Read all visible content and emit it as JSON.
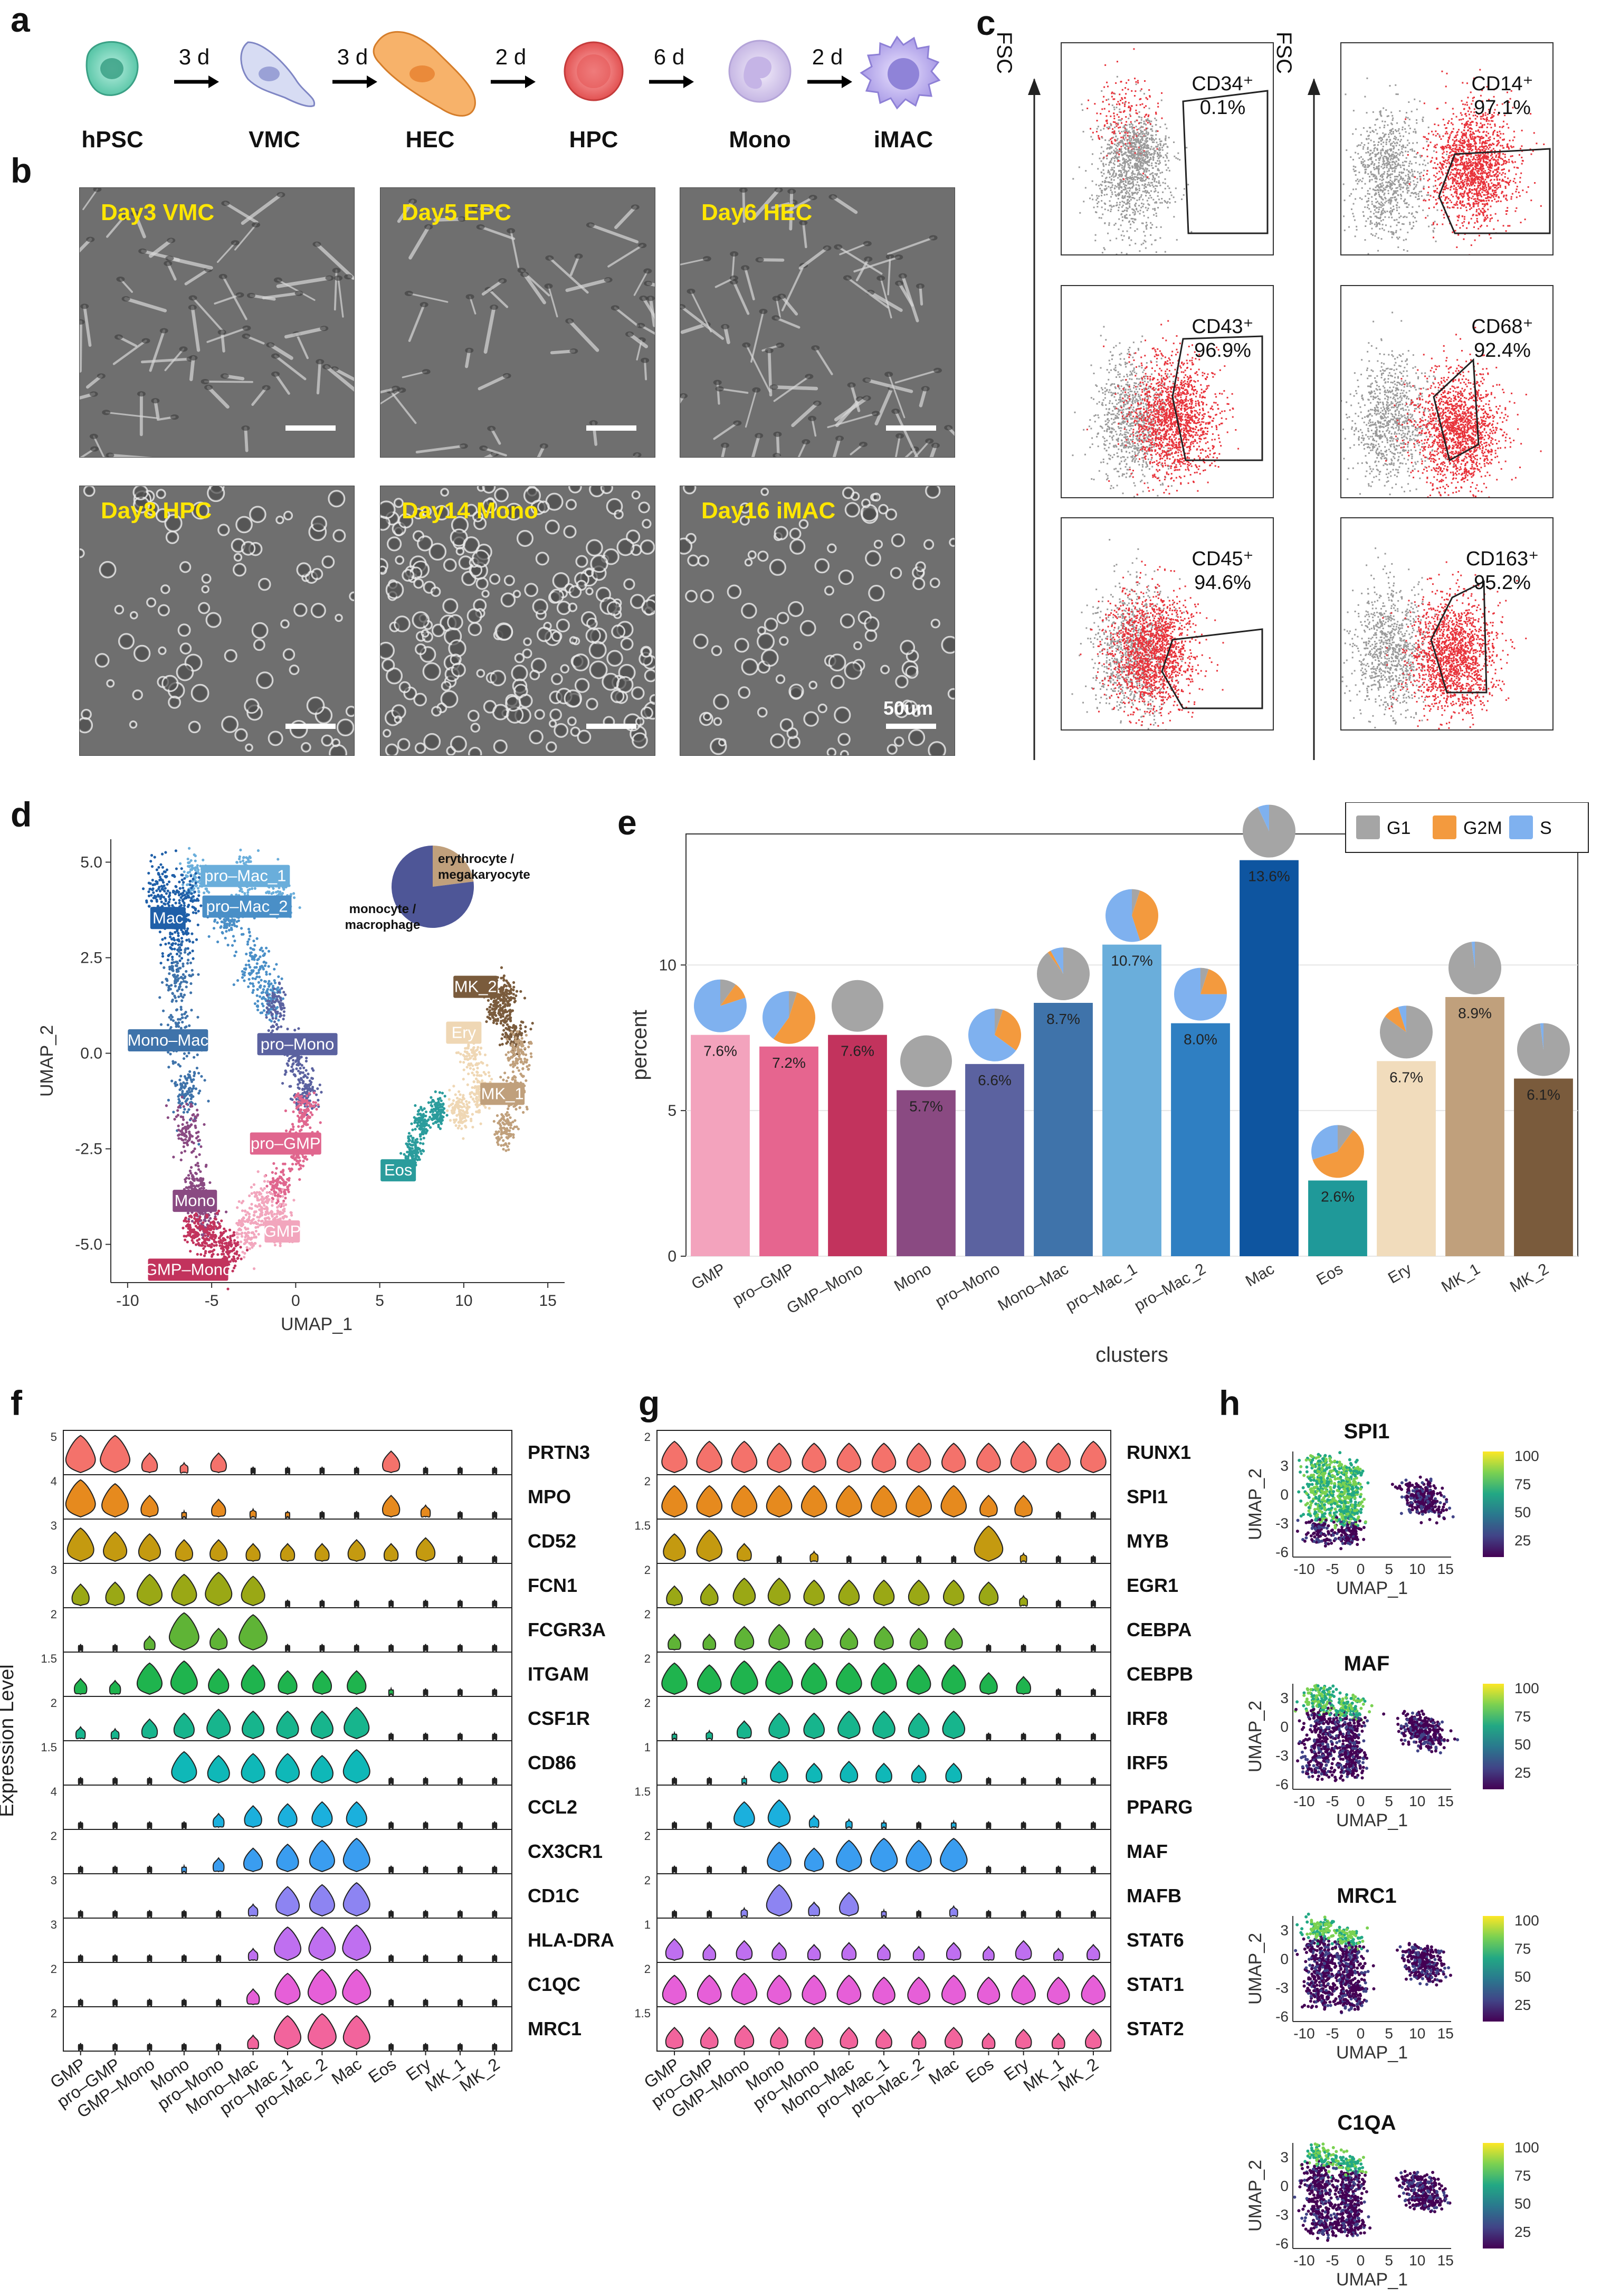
{
  "panel_labels": {
    "a": "a",
    "b": "b",
    "c": "c",
    "d": "d",
    "e": "e",
    "f": "f",
    "g": "g",
    "h": "h"
  },
  "differentiation": {
    "stages": [
      "hPSC",
      "VMC",
      "HEC",
      "HPC",
      "Mono",
      "iMAC"
    ],
    "durations": [
      "3 d",
      "3 d",
      "2 d",
      "6 d",
      "2 d"
    ]
  },
  "microscopy": {
    "titles": [
      "Day3 VMC",
      "Day5 EPC",
      "Day6 HEC",
      "Day8 HPC",
      "Day14 Mono",
      "Day16 iMAC"
    ],
    "scale_bar": "50um"
  },
  "flow": {
    "axis": "FSC",
    "left": [
      {
        "marker": "CD34⁺",
        "pct": "0.1%"
      },
      {
        "marker": "CD43⁺",
        "pct": "96.9%"
      },
      {
        "marker": "CD45⁺",
        "pct": "94.6%"
      }
    ],
    "right": [
      {
        "marker": "CD14⁺",
        "pct": "97.1%"
      },
      {
        "marker": "CD68⁺",
        "pct": "92.4%"
      },
      {
        "marker": "CD163⁺",
        "pct": "95.2%"
      }
    ],
    "colors": {
      "positive": "#e8323a",
      "negative": "#9a9a9a"
    }
  },
  "umap_d": {
    "xlabel": "UMAP_1",
    "ylabel": "UMAP_2",
    "xticks": [
      "-10",
      "-5",
      "0",
      "5",
      "10",
      "15"
    ],
    "yticks": [
      "5.0",
      "2.5",
      "0.0",
      "-2.5",
      "-5.0"
    ],
    "cluster_labels": [
      {
        "name": "pro–Mac_1",
        "color": "#6aaedb"
      },
      {
        "name": "Mac",
        "color": "#1f5fa8"
      },
      {
        "name": "pro–Mac_2",
        "color": "#4a8fc7"
      },
      {
        "name": "Mono–Mac",
        "color": "#3f73aa"
      },
      {
        "name": "pro–Mono",
        "color": "#5b62a0"
      },
      {
        "name": "pro–GMP",
        "color": "#e0668e"
      },
      {
        "name": "Mono",
        "color": "#8a4a82"
      },
      {
        "name": "GMP",
        "color": "#f2a6bd"
      },
      {
        "name": "GMP–Mono",
        "color": "#c2335d"
      },
      {
        "name": "MK_2",
        "color": "#7a5b3c"
      },
      {
        "name": "Ery",
        "color": "#efd7b4"
      },
      {
        "name": "MK_1",
        "color": "#c0a07c"
      },
      {
        "name": "Eos",
        "color": "#2a9c9c"
      }
    ],
    "pie": {
      "labels": [
        "erythrocyte /\nmegakaryocyte",
        "monocyte /\nmacrophage"
      ],
      "values": [
        0.23,
        0.77
      ],
      "colors": [
        "#c0a07c",
        "#4e5697"
      ]
    }
  },
  "chart_data": [
    {
      "type": "bar",
      "title": "",
      "xlabel": "clusters",
      "ylabel": "percent",
      "ylim": [
        0,
        14.5
      ],
      "yticks": [
        "0",
        "5",
        "10"
      ],
      "categories": [
        "GMP",
        "pro–GMP",
        "GMP–Mono",
        "Mono",
        "pro–Mono",
        "Mono–Mac",
        "pro–Mac_1",
        "pro–Mac_2",
        "Mac",
        "Eos",
        "Ery",
        "MK_1",
        "MK_2"
      ],
      "values": [
        7.6,
        7.2,
        7.6,
        5.7,
        6.6,
        8.7,
        10.7,
        8.0,
        13.6,
        2.6,
        6.7,
        8.9,
        6.1
      ],
      "value_labels": [
        "7.6%",
        "7.2%",
        "7.6%",
        "5.7%",
        "6.6%",
        "8.7%",
        "10.7%",
        "8.0%",
        "13.6%",
        "2.6%",
        "6.7%",
        "8.9%",
        "6.1%"
      ],
      "bar_colors": [
        "#f3a3bd",
        "#e6658f",
        "#c2335d",
        "#8a4a82",
        "#5b62a0",
        "#3f73aa",
        "#6aaedb",
        "#2f7fc2",
        "#0e55a0",
        "#1f9999",
        "#f1dcbc",
        "#c0a07c",
        "#7a5b3c"
      ],
      "legend": {
        "position": "top-right",
        "labels": [
          "G1",
          "G2M",
          "S"
        ],
        "colors": [
          "#a5a5a5",
          "#f39a3e",
          "#7fb1ef"
        ]
      },
      "cell_cycle_fractions": [
        [
          0.1,
          0.1,
          0.8
        ],
        [
          0.05,
          0.55,
          0.4
        ],
        [
          1.0,
          0.0,
          0.0
        ],
        [
          1.0,
          0.0,
          0.0
        ],
        [
          0.05,
          0.3,
          0.65
        ],
        [
          0.9,
          0.02,
          0.08
        ],
        [
          0.05,
          0.4,
          0.55
        ],
        [
          0.05,
          0.2,
          0.75
        ],
        [
          0.93,
          0.0,
          0.07
        ],
        [
          0.1,
          0.6,
          0.3
        ],
        [
          0.85,
          0.1,
          0.05
        ],
        [
          0.98,
          0.0,
          0.02
        ],
        [
          0.98,
          0.0,
          0.02
        ]
      ]
    },
    {
      "type": "violin",
      "title": "",
      "ylabel": "Expression Level",
      "categories": [
        "GMP",
        "pro–GMP",
        "GMP–Mono",
        "Mono",
        "pro–Mono",
        "Mono–Mac",
        "pro–Mac_1",
        "pro–Mac_2",
        "Mac",
        "Eos",
        "Ery",
        "MK_1",
        "MK_2"
      ],
      "genes": [
        "PRTN3",
        "MPO",
        "CD52",
        "FCN1",
        "FCGR3A",
        "ITGAM",
        "CSF1R",
        "CD86",
        "CCL2",
        "CX3CR1",
        "CD1C",
        "HLA-DRA",
        "C1QC",
        "MRC1"
      ],
      "ymax_labels": [
        "5",
        "4",
        "3",
        "3",
        "2",
        "1.5",
        "2",
        "1.5",
        "4",
        "2",
        "3",
        "3",
        "2",
        "2"
      ],
      "colors": [
        "#f4726b",
        "#e68a1e",
        "#c49a10",
        "#9aa815",
        "#5fb436",
        "#1fb44e",
        "#17b58d",
        "#0fb8b8",
        "#1bb0dd",
        "#3a9df0",
        "#8d84f2",
        "#bf6ff0",
        "#e65fd8",
        "#f2649c"
      ],
      "expression": [
        [
          0.95,
          0.95,
          0.5,
          0.25,
          0.5,
          0.1,
          0.1,
          0.08,
          0.05,
          0.55,
          0.1,
          0.1,
          0.08
        ],
        [
          0.95,
          0.85,
          0.55,
          0.15,
          0.45,
          0.2,
          0.12,
          0.1,
          0.08,
          0.55,
          0.3,
          0.08,
          0.08
        ],
        [
          0.85,
          0.75,
          0.7,
          0.55,
          0.55,
          0.45,
          0.45,
          0.45,
          0.55,
          0.45,
          0.6,
          0.08,
          0.08
        ],
        [
          0.55,
          0.6,
          0.8,
          0.8,
          0.85,
          0.75,
          0.1,
          0.08,
          0.1,
          0.1,
          0.1,
          0.05,
          0.05
        ],
        [
          0.05,
          0.05,
          0.35,
          0.95,
          0.55,
          0.9,
          0.1,
          0.05,
          0.05,
          0.05,
          0.05,
          0.05,
          0.05
        ],
        [
          0.4,
          0.35,
          0.8,
          0.85,
          0.65,
          0.75,
          0.6,
          0.6,
          0.6,
          0.15,
          0.1,
          0.05,
          0.05
        ],
        [
          0.3,
          0.25,
          0.5,
          0.65,
          0.75,
          0.7,
          0.7,
          0.7,
          0.8,
          0.1,
          0.05,
          0.05,
          0.05
        ],
        [
          0.05,
          0.05,
          0.1,
          0.8,
          0.7,
          0.75,
          0.75,
          0.7,
          0.85,
          0.05,
          0.05,
          0.05,
          0.05
        ],
        [
          0.05,
          0.05,
          0.1,
          0.1,
          0.35,
          0.55,
          0.6,
          0.65,
          0.65,
          0.05,
          0.05,
          0.05,
          0.05
        ],
        [
          0.05,
          0.05,
          0.05,
          0.15,
          0.35,
          0.6,
          0.7,
          0.8,
          0.85,
          0.05,
          0.05,
          0.05,
          0.05
        ],
        [
          0.05,
          0.05,
          0.05,
          0.05,
          0.1,
          0.3,
          0.75,
          0.8,
          0.85,
          0.05,
          0.05,
          0.05,
          0.05
        ],
        [
          0.05,
          0.05,
          0.05,
          0.05,
          0.1,
          0.3,
          0.85,
          0.85,
          0.9,
          0.05,
          0.05,
          0.05,
          0.05
        ],
        [
          0.05,
          0.05,
          0.05,
          0.05,
          0.05,
          0.4,
          0.8,
          0.9,
          0.9,
          0.05,
          0.05,
          0.05,
          0.05
        ],
        [
          0.05,
          0.05,
          0.05,
          0.05,
          0.1,
          0.35,
          0.85,
          0.9,
          0.85,
          0.05,
          0.05,
          0.05,
          0.05
        ]
      ]
    },
    {
      "type": "violin",
      "title": "",
      "categories": [
        "GMP",
        "pro–GMP",
        "GMP–Mono",
        "Mono",
        "pro–Mono",
        "Mono–Mac",
        "pro–Mac_1",
        "pro–Mac_2",
        "Mac",
        "Eos",
        "Ery",
        "MK_1",
        "MK_2"
      ],
      "genes": [
        "RUNX1",
        "SPI1",
        "MYB",
        "EGR1",
        "CEBPA",
        "CEBPB",
        "IRF8",
        "IRF5",
        "PPARG",
        "MAF",
        "MAFB",
        "STAT6",
        "STAT1",
        "STAT2"
      ],
      "ymax_labels": [
        "2",
        "2",
        "1.5",
        "2",
        "2",
        "2",
        "2",
        "1",
        "1.5",
        "2",
        "2",
        "1",
        "2",
        "1.5"
      ],
      "colors": [
        "#f4726b",
        "#e68a1e",
        "#c49a10",
        "#9aa815",
        "#5fb436",
        "#1fb44e",
        "#17b58d",
        "#0fb8b8",
        "#1bb0dd",
        "#3a9df0",
        "#8d84f2",
        "#bf6ff0",
        "#e65fd8",
        "#f2649c"
      ],
      "expression": [
        [
          0.8,
          0.8,
          0.8,
          0.75,
          0.75,
          0.75,
          0.75,
          0.75,
          0.75,
          0.75,
          0.8,
          0.75,
          0.8
        ],
        [
          0.8,
          0.8,
          0.8,
          0.8,
          0.8,
          0.8,
          0.8,
          0.8,
          0.8,
          0.55,
          0.55,
          0.05,
          0.05
        ],
        [
          0.7,
          0.8,
          0.45,
          0.05,
          0.25,
          0.05,
          0.05,
          0.05,
          0.05,
          0.9,
          0.2,
          0.05,
          0.05
        ],
        [
          0.5,
          0.55,
          0.7,
          0.7,
          0.65,
          0.65,
          0.65,
          0.65,
          0.65,
          0.6,
          0.25,
          0.05,
          0.05
        ],
        [
          0.4,
          0.4,
          0.6,
          0.65,
          0.55,
          0.55,
          0.6,
          0.55,
          0.55,
          0.1,
          0.05,
          0.05,
          0.05
        ],
        [
          0.8,
          0.75,
          0.85,
          0.85,
          0.8,
          0.8,
          0.8,
          0.75,
          0.75,
          0.55,
          0.45,
          0.05,
          0.05
        ],
        [
          0.15,
          0.2,
          0.45,
          0.65,
          0.65,
          0.7,
          0.7,
          0.65,
          0.7,
          0.1,
          0.05,
          0.05,
          0.05
        ],
        [
          0.05,
          0.05,
          0.15,
          0.55,
          0.5,
          0.55,
          0.5,
          0.45,
          0.5,
          0.05,
          0.05,
          0.05,
          0.05
        ],
        [
          0.05,
          0.1,
          0.65,
          0.7,
          0.3,
          0.2,
          0.15,
          0.1,
          0.15,
          0.05,
          0.05,
          0.05,
          0.05
        ],
        [
          0.05,
          0.05,
          0.1,
          0.75,
          0.6,
          0.8,
          0.85,
          0.8,
          0.85,
          0.05,
          0.05,
          0.05,
          0.05
        ],
        [
          0.05,
          0.05,
          0.2,
          0.8,
          0.35,
          0.6,
          0.15,
          0.1,
          0.25,
          0.05,
          0.05,
          0.05,
          0.05
        ],
        [
          0.55,
          0.4,
          0.5,
          0.45,
          0.4,
          0.45,
          0.4,
          0.35,
          0.45,
          0.35,
          0.5,
          0.3,
          0.4
        ],
        [
          0.75,
          0.75,
          0.8,
          0.75,
          0.75,
          0.75,
          0.7,
          0.7,
          0.75,
          0.7,
          0.75,
          0.7,
          0.75
        ],
        [
          0.55,
          0.55,
          0.6,
          0.55,
          0.55,
          0.55,
          0.5,
          0.45,
          0.55,
          0.4,
          0.5,
          0.4,
          0.5
        ]
      ]
    }
  ],
  "feature_plots": {
    "genes": [
      "SPI1",
      "MAF",
      "MRC1",
      "C1QA"
    ],
    "xlabel": "UMAP_1",
    "ylabel": "UMAP_2",
    "xticks": [
      "-10",
      "-5",
      "0",
      "5",
      "10",
      "15"
    ],
    "yticks": [
      "3",
      "0",
      "-3",
      "-6"
    ],
    "colorbar_ticks": [
      "100",
      "75",
      "50",
      "25"
    ],
    "colorbar": [
      "#fde725",
      "#7ad151",
      "#22a884",
      "#2a788e",
      "#414487",
      "#440154"
    ],
    "expression_high_fraction": [
      0.75,
      0.25,
      0.2,
      0.2
    ]
  }
}
